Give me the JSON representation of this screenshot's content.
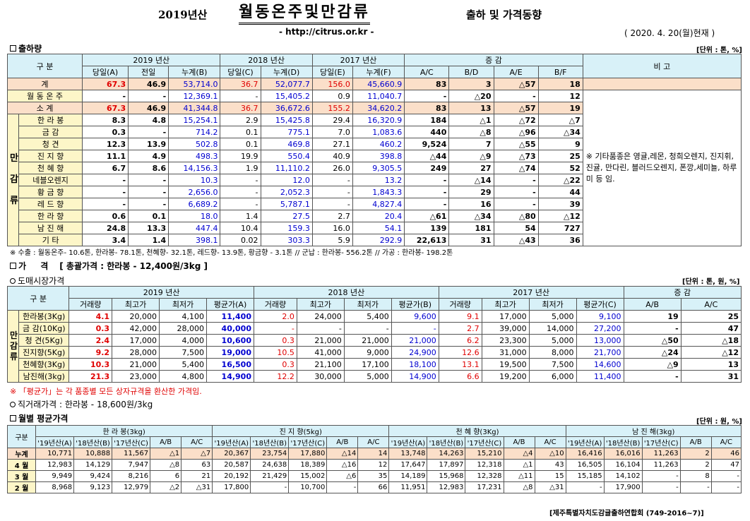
{
  "header": {
    "year": "2019년산",
    "title": "월동온주및만감류",
    "subtitle": "출하 및 가격동향",
    "url": "- http://citrus.or.kr -",
    "asof": "( 2020. 4. 20(월)현재 )"
  },
  "s1": {
    "title": "출하량",
    "unit": "[단위 : 톤, %]",
    "h": {
      "gu": "구 분",
      "y2019": "2019 년산",
      "y2018": "2018 년산",
      "y2017": "2017 년산",
      "inc": "증 감",
      "rem": "비 고",
      "cols": [
        "당일(A)",
        "전일",
        "누계(B)",
        "당일(C)",
        "누계(D)",
        "당일(E)",
        "누계(F)",
        "A/C",
        "B/D",
        "A/E",
        "B/F"
      ]
    },
    "group_label": "만 감 류",
    "remark": "※ 기타품종은 영귤,레몬, 청희오렌지, 진지휘, 진귤, 만다린, 블러드오렌지, 폰깡,세미뇰, 하루미 등 임.",
    "rows": [
      {
        "n": "계",
        "v": [
          "67.3",
          "46.9",
          "53,714.0",
          "36.7",
          "52,077.7",
          "156.0",
          "45,660.9",
          "83",
          "3",
          "△57",
          "18"
        ]
      },
      {
        "n": "월 동 온 주",
        "v": [
          "-",
          "-",
          "12,369.1",
          "-",
          "15,405.2",
          "0.9",
          "11,040.7",
          "-",
          "△20",
          "-",
          "12"
        ]
      },
      {
        "n": "소 계",
        "v": [
          "67.3",
          "46.9",
          "41,344.8",
          "36.7",
          "36,672.6",
          "155.2",
          "34,620.2",
          "83",
          "13",
          "△57",
          "19"
        ]
      },
      {
        "n": "한 라 봉",
        "v": [
          "8.3",
          "4.8",
          "15,254.1",
          "2.9",
          "15,425.8",
          "29.4",
          "16,320.9",
          "184",
          "△1",
          "△72",
          "△7"
        ]
      },
      {
        "n": "금 감",
        "v": [
          "0.3",
          "-",
          "714.2",
          "0.1",
          "775.1",
          "7.0",
          "1,083.6",
          "440",
          "△8",
          "△96",
          "△34"
        ]
      },
      {
        "n": "청 견",
        "v": [
          "12.3",
          "13.9",
          "502.8",
          "0.1",
          "469.8",
          "27.1",
          "460.2",
          "9,524",
          "7",
          "△55",
          "9"
        ]
      },
      {
        "n": "진 지 향",
        "v": [
          "11.1",
          "4.9",
          "498.3",
          "19.9",
          "550.4",
          "40.9",
          "398.8",
          "△44",
          "△9",
          "△73",
          "25"
        ]
      },
      {
        "n": "천 혜 향",
        "v": [
          "6.7",
          "8.6",
          "14,156.3",
          "1.9",
          "11,110.2",
          "26.0",
          "9,305.5",
          "249",
          "27",
          "△74",
          "52"
        ]
      },
      {
        "n": "네블오렌지",
        "v": [
          "-",
          "-",
          "10.3",
          "-",
          "12.0",
          "-",
          "13.2",
          "-",
          "△14",
          "-",
          "△22"
        ]
      },
      {
        "n": "황 금 향",
        "v": [
          "-",
          "-",
          "2,656.0",
          "-",
          "2,052.3",
          "-",
          "1,843.3",
          "-",
          "29",
          "-",
          "44"
        ]
      },
      {
        "n": "레 드 향",
        "v": [
          "-",
          "-",
          "6,689.2",
          "-",
          "5,787.1",
          "-",
          "4,827.4",
          "-",
          "16",
          "-",
          "39"
        ]
      },
      {
        "n": "한 라 향",
        "v": [
          "0.6",
          "0.1",
          "18.0",
          "1.4",
          "27.5",
          "2.7",
          "20.4",
          "△61",
          "△34",
          "△80",
          "△12"
        ]
      },
      {
        "n": "남 진 해",
        "v": [
          "24.8",
          "13.3",
          "447.4",
          "10.4",
          "159.3",
          "16.0",
          "54.1",
          "139",
          "181",
          "54",
          "727"
        ]
      },
      {
        "n": "기 타",
        "v": [
          "3.4",
          "1.4",
          "398.1",
          "0.02",
          "303.3",
          "5.9",
          "292.9",
          "22,613",
          "31",
          "△43",
          "36"
        ]
      }
    ],
    "note": "※ 수출 : 월동온주- 10.6톤, 한라봉- 78.1톤, 천혜향- 32.1톤, 레드향- 13.9톤, 황금향 - 3.1톤  // 군납 : 한라봉- 556.2톤  // 가공 : 한라봉- 198.2톤"
  },
  "s2": {
    "title": "가 격",
    "sub": "[ 총괄가격 : 한라봉 - 12,400원/3kg ]",
    "wholesale": "도매시장가격",
    "unit": "[단위 : 톤, 원, %]",
    "h": {
      "gu": "구 분",
      "y2019": "2019 년산",
      "y2018": "2018 년산",
      "y2017": "2017 년산",
      "inc": "증 감",
      "cols": [
        "거래량",
        "최고가",
        "최저가",
        "평균가(A)",
        "거래량",
        "최고가",
        "최저가",
        "평균가(B)",
        "거래량",
        "최고가",
        "최저가",
        "평균가(C)",
        "A/B",
        "A/C"
      ]
    },
    "group_label": "만 감 류",
    "rows": [
      {
        "n": "한라봉(3Kg)",
        "v": [
          "4.1",
          "20,000",
          "4,100",
          "11,400",
          "2.0",
          "24,000",
          "5,400",
          "9,600",
          "9.1",
          "17,000",
          "5,000",
          "9,100",
          "19",
          "25"
        ]
      },
      {
        "n": "금 감(10Kg)",
        "v": [
          "0.3",
          "42,000",
          "28,000",
          "40,000",
          "-",
          "-",
          "-",
          "-",
          "2.7",
          "39,000",
          "14,000",
          "27,200",
          "-",
          "47"
        ]
      },
      {
        "n": "청 견(5Kg)",
        "v": [
          "2.4",
          "17,000",
          "4,000",
          "10,600",
          "0.3",
          "21,000",
          "21,000",
          "21,000",
          "6.2",
          "23,300",
          "5,000",
          "13,000",
          "△50",
          "△18"
        ]
      },
      {
        "n": "진지향(5Kg)",
        "v": [
          "9.2",
          "28,000",
          "7,500",
          "19,000",
          "10.5",
          "41,000",
          "9,000",
          "24,900",
          "12.6",
          "31,000",
          "8,000",
          "21,700",
          "△24",
          "△12"
        ]
      },
      {
        "n": "천혜향(3Kg)",
        "v": [
          "10.3",
          "21,000",
          "5,400",
          "16,500",
          "0.3",
          "21,100",
          "17,100",
          "18,100",
          "13.1",
          "19,500",
          "7,500",
          "14,600",
          "△9",
          "13"
        ]
      },
      {
        "n": "남진해(3kg)",
        "v": [
          "21.3",
          "23,000",
          "4,800",
          "14,900",
          "12.2",
          "30,000",
          "5,000",
          "14,900",
          "6.6",
          "19,200",
          "6,000",
          "11,400",
          "-",
          "31"
        ]
      }
    ],
    "note": "※ 「평균가」는 각 품종별 모든 상자규격을 환산한 가격임.",
    "direct": "직거래가격 : 한라봉 - 18,600원/3kg"
  },
  "s3": {
    "title": "월별 평균가격",
    "unit": "[단위 : 원, %]",
    "h": {
      "gu": "구분",
      "g1": "한 라 봉(3kg)",
      "g2": "진 지 향(5kg)",
      "g3": "천 혜 향(3Kg)",
      "g4": "남 진 해(3kg)",
      "cols": [
        "'19년산(A)",
        "'18년산(B)",
        "'17년산(C)",
        "A/B",
        "A/C"
      ]
    },
    "rows": [
      {
        "n": "누계",
        "v": [
          "10,771",
          "10,888",
          "11,567",
          "△1",
          "△7",
          "20,367",
          "23,754",
          "17,880",
          "△14",
          "14",
          "13,748",
          "14,263",
          "15,210",
          "△4",
          "△10",
          "16,416",
          "16,016",
          "11,263",
          "2",
          "46"
        ]
      },
      {
        "n": "4 월",
        "v": [
          "12,983",
          "14,129",
          "7,947",
          "△8",
          "63",
          "20,587",
          "24,638",
          "18,389",
          "△16",
          "12",
          "17,647",
          "17,897",
          "12,318",
          "△1",
          "43",
          "16,505",
          "16,104",
          "11,263",
          "2",
          "47"
        ]
      },
      {
        "n": "3 월",
        "v": [
          "9,949",
          "9,424",
          "8,216",
          "6",
          "21",
          "20,192",
          "21,429",
          "15,002",
          "△6",
          "35",
          "14,189",
          "15,968",
          "12,328",
          "△11",
          "15",
          "15,185",
          "14,102",
          "-",
          "8",
          "-"
        ]
      },
      {
        "n": "2 월",
        "v": [
          "8,968",
          "9,123",
          "12,979",
          "△2",
          "△31",
          "17,800",
          "-",
          "10,700",
          "-",
          "66",
          "11,951",
          "12,983",
          "17,231",
          "△8",
          "△31",
          "-",
          "17,900",
          "-",
          "-",
          "-"
        ]
      }
    ]
  },
  "footer": "[제주특별자치도감귤출하연합회 (749-2016~7)]"
}
